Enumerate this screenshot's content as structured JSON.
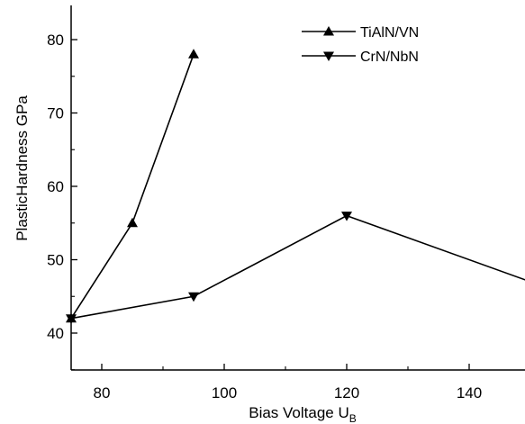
{
  "chart_data": {
    "type": "line",
    "xlabel": "Bias Voltage U",
    "xlabel_subscript": "B",
    "ylabel": "PlasticHardness GPa",
    "xlim": [
      75,
      150
    ],
    "ylim": [
      35,
      85
    ],
    "xticks": [
      80,
      100,
      120,
      140
    ],
    "yticks": [
      40,
      50,
      60,
      70,
      80
    ],
    "grid": false,
    "legend_position": "top-right",
    "series": [
      {
        "name": "TiAlN/VN",
        "marker": "triangle-up",
        "x": [
          75,
          85,
          95
        ],
        "y": [
          42,
          55,
          78
        ]
      },
      {
        "name": "CrN/NbN",
        "marker": "triangle-down",
        "x": [
          75,
          95,
          120,
          150
        ],
        "y": [
          42,
          45,
          56,
          47
        ]
      }
    ]
  }
}
